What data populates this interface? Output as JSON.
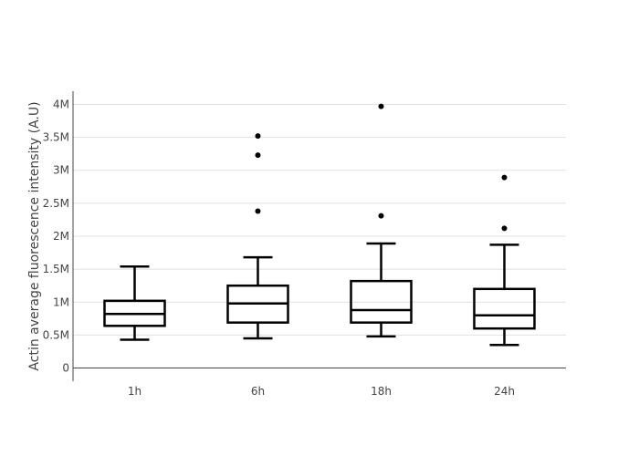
{
  "chart_data": {
    "type": "box",
    "ylabel": "Actin average fluorescence intensity (A.U)",
    "xlabel": "",
    "categories": [
      "1h",
      "6h",
      "18h",
      "24h"
    ],
    "ylim": [
      -0.2,
      4.2
    ],
    "yunit": "M",
    "yticks": [
      0,
      0.5,
      1,
      1.5,
      2,
      2.5,
      3,
      3.5,
      4
    ],
    "ytick_labels": [
      "0",
      "0.5M",
      "1M",
      "1.5M",
      "2M",
      "2.5M",
      "3M",
      "3.5M",
      "4M"
    ],
    "grid": true,
    "boxes": [
      {
        "category": "1h",
        "lower_whisker": 0.43,
        "q1": 0.64,
        "median": 0.82,
        "q3": 1.02,
        "upper_whisker": 1.54,
        "outliers": []
      },
      {
        "category": "6h",
        "lower_whisker": 0.45,
        "q1": 0.69,
        "median": 0.98,
        "q3": 1.25,
        "upper_whisker": 1.68,
        "outliers": [
          2.38,
          3.23,
          3.52
        ]
      },
      {
        "category": "18h",
        "lower_whisker": 0.48,
        "q1": 0.69,
        "median": 0.88,
        "q3": 1.32,
        "upper_whisker": 1.89,
        "outliers": [
          2.31,
          3.97
        ]
      },
      {
        "category": "24h",
        "lower_whisker": 0.35,
        "q1": 0.6,
        "median": 0.8,
        "q3": 1.2,
        "upper_whisker": 1.87,
        "outliers": [
          2.12,
          2.89
        ]
      }
    ],
    "colors": {
      "box": "#000000",
      "grid": "#e1e1e1",
      "axis": "#444444",
      "background": "#ffffff"
    }
  }
}
